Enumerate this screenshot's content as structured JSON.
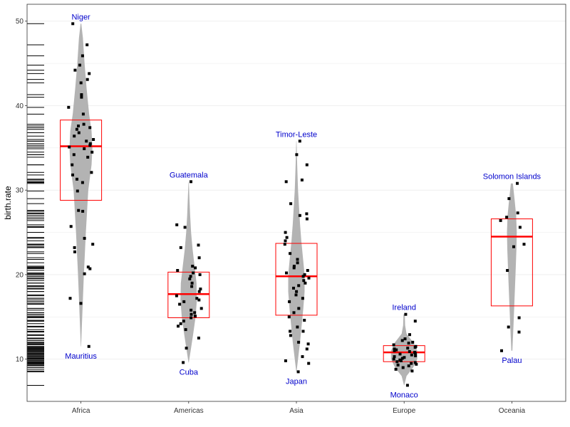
{
  "chart_data": {
    "type": "violin",
    "title": "",
    "xlabel": "",
    "ylabel": "birth.rate",
    "categories": [
      "Africa",
      "Americas",
      "Asia",
      "Europe",
      "Oceania"
    ],
    "ylim": [
      5,
      52
    ],
    "yticks": [
      10,
      20,
      30,
      40,
      50
    ],
    "grid": true,
    "colors": {
      "violin": "#b3b3b3",
      "box": "#ff0000",
      "points": "#000000",
      "annotation": "#0000cc",
      "grid": "#ebebeb",
      "panel_border": "#333333"
    },
    "groups": [
      {
        "name": "Africa",
        "box": {
          "q1": 28.8,
          "median": 35.2,
          "q3": 38.3
        },
        "density": [
          [
            11.5,
            0.1
          ],
          [
            15,
            0.8
          ],
          [
            20,
            1.8
          ],
          [
            25,
            3.0
          ],
          [
            30,
            4.5
          ],
          [
            33,
            6.5
          ],
          [
            35,
            7.0
          ],
          [
            37,
            6.5
          ],
          [
            39,
            5.0
          ],
          [
            42,
            3.5
          ],
          [
            45,
            2.2
          ],
          [
            48,
            1.2
          ],
          [
            49.7,
            0.2
          ]
        ],
        "points": [
          49.7,
          47.2,
          45.9,
          44.8,
          44.2,
          43.8,
          43.1,
          42.7,
          41.3,
          41.0,
          39.8,
          39.0,
          37.8,
          37.6,
          37.4,
          37.2,
          36.8,
          36.4,
          36.0,
          35.8,
          35.5,
          35.3,
          35.1,
          34.9,
          34.5,
          34.2,
          33.9,
          33.0,
          32.1,
          31.8,
          31.3,
          30.9,
          29.9,
          27.6,
          27.5,
          25.7,
          24.3,
          23.6,
          23.2,
          22.7,
          20.9,
          20.7,
          20.1,
          17.2,
          16.6,
          11.5
        ],
        "labels": [
          {
            "text": "Niger",
            "y": 49.7,
            "pos": "above"
          },
          {
            "text": "Mauritius",
            "y": 11.5,
            "pos": "below"
          }
        ]
      },
      {
        "name": "Americas",
        "box": {
          "q1": 14.9,
          "median": 17.7,
          "q3": 20.3
        },
        "density": [
          [
            9.6,
            0.1
          ],
          [
            11,
            1.2
          ],
          [
            13,
            2.8
          ],
          [
            15,
            4.2
          ],
          [
            17,
            5.0
          ],
          [
            19,
            4.8
          ],
          [
            21,
            3.6
          ],
          [
            23,
            2.4
          ],
          [
            25,
            1.5
          ],
          [
            27,
            0.9
          ],
          [
            29,
            0.5
          ],
          [
            31,
            0.1
          ]
        ],
        "points": [
          31.0,
          25.9,
          25.6,
          23.5,
          23.2,
          22.0,
          21.0,
          20.8,
          20.5,
          20.2,
          20.0,
          19.8,
          19.5,
          19.0,
          18.6,
          18.3,
          18.0,
          17.5,
          17.2,
          17.0,
          16.8,
          16.5,
          16.0,
          15.8,
          15.5,
          15.3,
          15.1,
          14.9,
          14.5,
          14.2,
          13.9,
          13.5,
          12.5,
          11.3,
          9.6
        ],
        "labels": [
          {
            "text": "Guatemala",
            "y": 31.0,
            "pos": "above"
          },
          {
            "text": "Cuba",
            "y": 9.6,
            "pos": "below"
          }
        ]
      },
      {
        "name": "Asia",
        "box": {
          "q1": 15.2,
          "median": 19.8,
          "q3": 23.7
        },
        "density": [
          [
            8.5,
            0.1
          ],
          [
            10,
            1.0
          ],
          [
            12,
            2.2
          ],
          [
            14,
            3.2
          ],
          [
            16,
            4.2
          ],
          [
            18,
            5.0
          ],
          [
            20,
            5.0
          ],
          [
            22,
            4.0
          ],
          [
            24,
            3.0
          ],
          [
            26,
            2.2
          ],
          [
            28,
            1.6
          ],
          [
            30,
            1.0
          ],
          [
            33,
            0.5
          ],
          [
            35.8,
            0.1
          ]
        ],
        "points": [
          35.8,
          34.2,
          33.0,
          31.2,
          31.0,
          28.4,
          27.2,
          27.0,
          26.6,
          25.0,
          24.4,
          24.0,
          23.6,
          22.5,
          21.8,
          21.4,
          21.0,
          20.8,
          20.5,
          20.2,
          20.0,
          19.8,
          19.6,
          19.3,
          19.0,
          18.7,
          18.4,
          18.0,
          17.6,
          17.2,
          16.8,
          16.0,
          15.5,
          15.0,
          14.6,
          13.8,
          13.3,
          13.3,
          12.8,
          12.0,
          11.8,
          11.2,
          10.3,
          9.8,
          9.5,
          8.5
        ],
        "labels": [
          {
            "text": "Timor-Leste",
            "y": 35.8,
            "pos": "above"
          },
          {
            "text": "Japan",
            "y": 8.5,
            "pos": "below"
          }
        ]
      },
      {
        "name": "Europe",
        "box": {
          "q1": 9.7,
          "median": 10.8,
          "q3": 11.6
        },
        "density": [
          [
            6.9,
            0.1
          ],
          [
            8,
            1.5
          ],
          [
            9,
            5.5
          ],
          [
            10,
            8.0
          ],
          [
            11,
            8.0
          ],
          [
            12,
            5.5
          ],
          [
            13,
            1.5
          ],
          [
            14,
            0.6
          ],
          [
            15.3,
            0.4
          ]
        ],
        "points": [
          15.3,
          14.5,
          12.9,
          12.4,
          12.2,
          12.0,
          11.9,
          11.7,
          11.5,
          11.4,
          11.3,
          11.2,
          11.1,
          11.0,
          10.9,
          10.8,
          10.7,
          10.6,
          10.5,
          10.4,
          10.3,
          10.2,
          10.1,
          10.0,
          9.9,
          9.8,
          9.7,
          9.6,
          9.5,
          9.4,
          9.3,
          9.2,
          9.0,
          8.8,
          8.6,
          6.9
        ],
        "labels": [
          {
            "text": "Ireland",
            "y": 15.3,
            "pos": "above"
          },
          {
            "text": "Monaco",
            "y": 6.9,
            "pos": "below"
          }
        ]
      },
      {
        "name": "Oceania",
        "box": {
          "q1": 16.3,
          "median": 24.5,
          "q3": 26.6
        },
        "density": [
          [
            11.0,
            0.3
          ],
          [
            14,
            1.0
          ],
          [
            17,
            1.6
          ],
          [
            20,
            2.2
          ],
          [
            23,
            2.8
          ],
          [
            25,
            3.0
          ],
          [
            27,
            2.6
          ],
          [
            29,
            1.6
          ],
          [
            30.8,
            0.6
          ]
        ],
        "points": [
          30.8,
          29.0,
          27.3,
          26.8,
          26.4,
          25.6,
          23.6,
          23.3,
          20.5,
          14.9,
          13.8,
          13.2,
          11.0
        ],
        "labels": [
          {
            "text": "Solomon Islands",
            "y": 30.8,
            "pos": "above"
          },
          {
            "text": "Palau",
            "y": 11.0,
            "pos": "below"
          }
        ]
      }
    ]
  }
}
